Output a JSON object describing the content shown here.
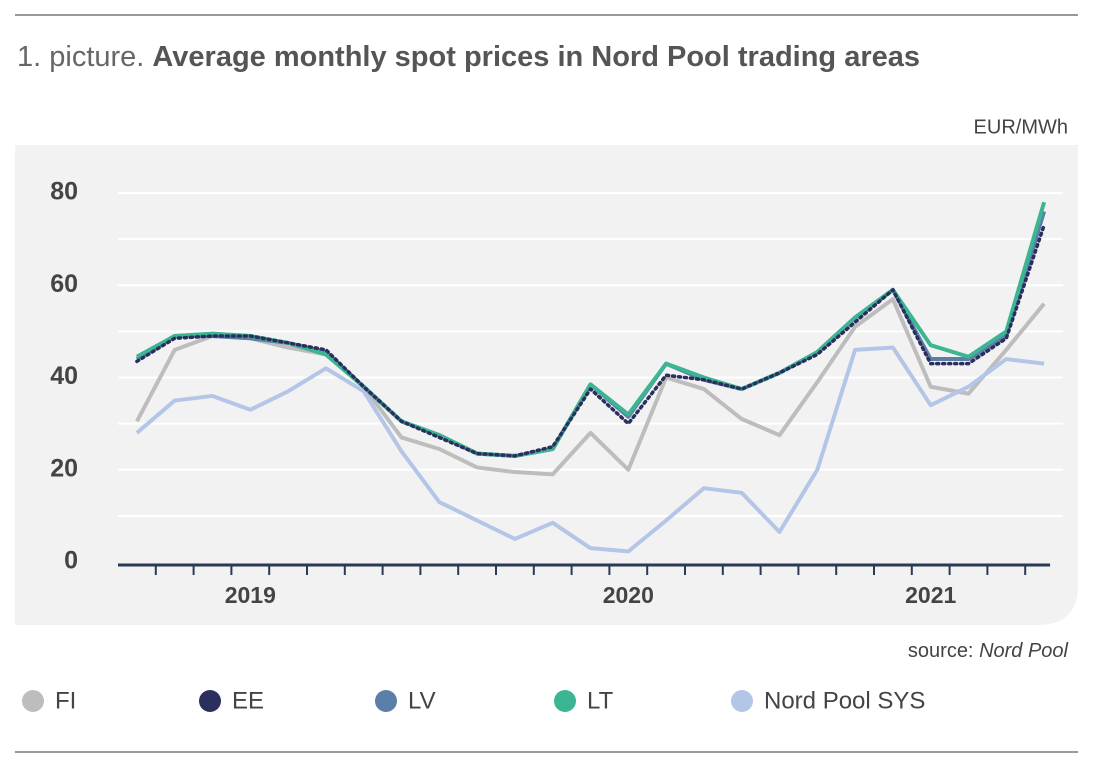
{
  "chart_data": {
    "type": "line",
    "figure_label": "1. picture.",
    "title": "Average monthly spot prices in Nord Pool trading areas",
    "y_axis_label": "EUR/MWh",
    "source_label": "source:",
    "source": "Nord Pool",
    "categories": [
      null,
      null,
      null,
      "2019",
      null,
      null,
      null,
      null,
      null,
      null,
      null,
      null,
      null,
      "2020",
      null,
      null,
      null,
      null,
      null,
      null,
      null,
      "2021",
      null,
      null,
      null
    ],
    "series": [
      {
        "name": "FI",
        "color": "#bdbdbd",
        "values": [
          30.5,
          46,
          49,
          48.5,
          46.5,
          45,
          38,
          27,
          24.5,
          20.5,
          19.5,
          19,
          28,
          20,
          40,
          37.5,
          31,
          27.5,
          39,
          51,
          57,
          38,
          36.5,
          46,
          56
        ]
      },
      {
        "name": "EE",
        "color": "#2a2f5e",
        "dashed": true,
        "values": [
          43.5,
          48.5,
          49,
          49,
          47.5,
          46,
          38,
          30.5,
          27,
          23.5,
          23,
          25,
          37.5,
          30,
          40.5,
          39.5,
          37.5,
          41,
          45,
          52,
          59,
          43,
          43,
          48.5,
          73
        ]
      },
      {
        "name": "LV",
        "color": "#5b7fa8",
        "values": [
          44,
          49,
          49,
          48.5,
          47.5,
          45.5,
          38,
          30.5,
          27.5,
          23.5,
          23,
          24.5,
          38.5,
          31.5,
          43,
          39.5,
          37.5,
          41,
          45.5,
          53,
          59,
          44,
          44,
          49,
          76
        ]
      },
      {
        "name": "LT",
        "color": "#3cb592",
        "values": [
          44.5,
          49,
          49.5,
          49,
          47.5,
          45,
          38,
          30.5,
          27.5,
          23.5,
          23,
          24.5,
          38.5,
          32,
          43,
          40,
          37.5,
          41,
          45.5,
          53,
          59,
          47,
          44.5,
          50,
          78
        ]
      },
      {
        "name": "Nord Pool SYS",
        "color": "#b4c6e7",
        "values": [
          28,
          35,
          36,
          33,
          37,
          42,
          37,
          24,
          13,
          9,
          5,
          8.5,
          3,
          2.3,
          9,
          16,
          15,
          6.5,
          20,
          46,
          46.5,
          34,
          38,
          44,
          43
        ]
      }
    ],
    "ylim": [
      0,
      80
    ],
    "yticks": [
      0,
      20,
      40,
      60,
      80
    ],
    "minor_yticks": [
      10,
      30,
      50,
      70
    ],
    "grid": true,
    "legend": "bottom"
  }
}
